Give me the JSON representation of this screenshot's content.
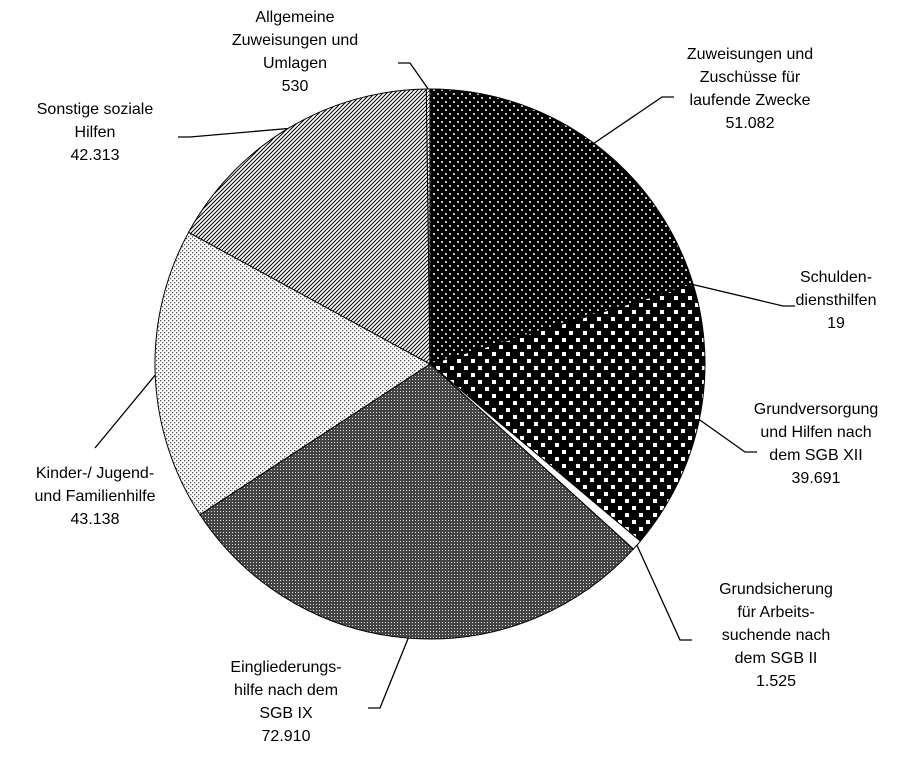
{
  "chart_data": {
    "type": "pie",
    "categories": [
      "Zuweisungen und\nZuschüsse für\nlaufende Zwecke",
      "Schulden-\ndiensthilfen",
      "Grundversorgung\nund Hilfen nach\ndem SGB XII",
      "Grundsicherung\nfür Arbeits-\nsuchende nach\ndem SGB II",
      "Eingliederungs-\nhilfe nach dem\nSGB IX",
      "Kinder-/ Jugend-\nund Familienhilfe",
      "Sonstige soziale\nHilfen",
      "Allgemeine\nZuweisungen und\nUmlagen"
    ],
    "values": [
      51082,
      19,
      39691,
      1525,
      72910,
      43138,
      42313,
      530
    ],
    "value_labels": [
      "51.082",
      "19",
      "39.691",
      "1.525",
      "72.910",
      "43.138",
      "42.313",
      "530"
    ]
  }
}
